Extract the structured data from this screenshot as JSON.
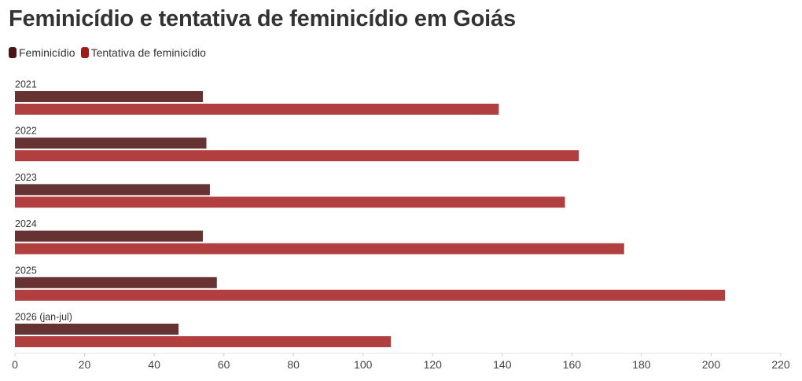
{
  "title": "Feminicídio e tentativa de feminicídio em Goiás",
  "legend": [
    {
      "label": "Feminicídio",
      "color": "#673232"
    },
    {
      "label": "Tentativa de feminicídio",
      "color": "#b23f3f"
    }
  ],
  "legend_swatch_colors": [
    "#4a1515",
    "#9e1b1b"
  ],
  "chart_data": {
    "type": "bar",
    "orientation": "horizontal",
    "categories": [
      "2021",
      "2022",
      "2023",
      "2024",
      "2025",
      "2026 (jan-jul)"
    ],
    "series": [
      {
        "name": "Feminicídio",
        "values": [
          54,
          55,
          56,
          54,
          58,
          47
        ],
        "color": "#673232"
      },
      {
        "name": "Tentativa de feminicídio",
        "values": [
          139,
          162,
          158,
          175,
          204,
          108
        ],
        "color": "#b23f3f"
      }
    ],
    "xlim": [
      0,
      220
    ],
    "x_ticks": [
      0,
      20,
      40,
      60,
      80,
      100,
      120,
      140,
      160,
      180,
      200,
      220
    ],
    "grid": false,
    "legend_position": "top-left"
  }
}
